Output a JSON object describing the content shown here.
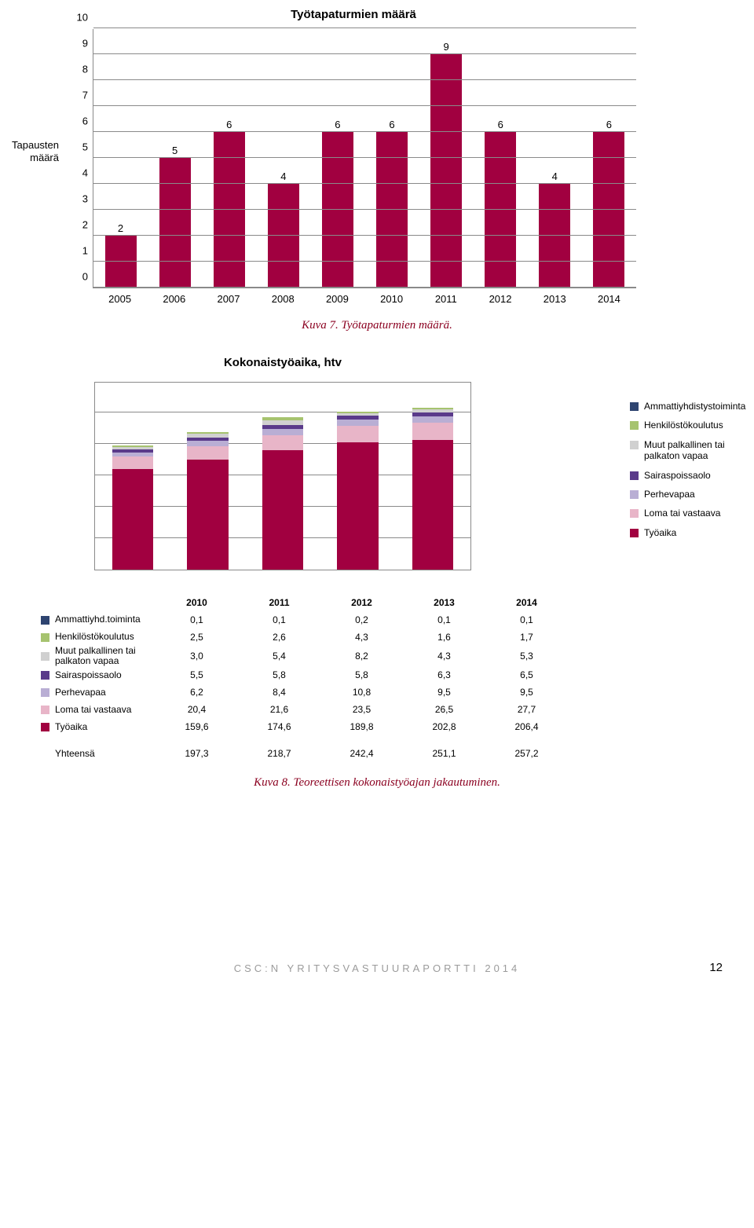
{
  "colors": {
    "bar": "#a10040",
    "grid": "#8a8a8a",
    "caption": "#8b0020",
    "series": {
      "ammattiyhd": "#2e4470",
      "henkilosto": "#a6c36f",
      "muutpalk": "#d0d0d0",
      "sairas": "#5a3a8a",
      "perhe": "#b9aed4",
      "loma": "#e8b5c8",
      "tyoaika": "#a10040"
    }
  },
  "bar_chart": {
    "title": "Työtapaturmien määrä",
    "ylabel": "Tapausten määrä",
    "ymax": 10,
    "yticks": [
      0,
      1,
      2,
      3,
      4,
      5,
      6,
      7,
      8,
      9,
      10
    ],
    "categories": [
      "2005",
      "2006",
      "2007",
      "2008",
      "2009",
      "2010",
      "2011",
      "2012",
      "2013",
      "2014"
    ],
    "values": [
      2,
      5,
      6,
      4,
      6,
      6,
      9,
      6,
      4,
      6
    ]
  },
  "caption1": "Kuva 7. Työtapaturmien määrä.",
  "stacked": {
    "title": "Kokonaistyöaika, htv",
    "ymax": 300,
    "grid_steps": 6,
    "categories": [
      "2010",
      "2011",
      "2012",
      "2013",
      "2014"
    ],
    "series": [
      {
        "key": "tyoaika",
        "name": "Työaika",
        "color": "#a10040",
        "values": [
          159.6,
          174.6,
          189.8,
          202.8,
          206.4
        ]
      },
      {
        "key": "loma",
        "name": "Loma tai vastaava",
        "color": "#e8b5c8",
        "values": [
          20.4,
          21.6,
          23.5,
          26.5,
          27.7
        ]
      },
      {
        "key": "perhe",
        "name": "Perhevapaa",
        "color": "#b9aed4",
        "values": [
          6.2,
          8.4,
          10.8,
          9.5,
          9.5
        ]
      },
      {
        "key": "sairas",
        "name": "Sairaspoissaolo",
        "color": "#5a3a8a",
        "values": [
          5.5,
          5.8,
          5.8,
          6.3,
          6.5
        ]
      },
      {
        "key": "muutpalk",
        "name": "Muut palkallinen tai palkaton vapaa",
        "color": "#d0d0d0",
        "values": [
          3.0,
          5.4,
          8.2,
          4.3,
          5.3
        ]
      },
      {
        "key": "henkilosto",
        "name": "Henkilöstökoulutus",
        "color": "#a6c36f",
        "values": [
          2.5,
          2.6,
          4.3,
          1.6,
          1.7
        ]
      },
      {
        "key": "ammattiyhd",
        "name": "Ammattiyhdistystoiminta",
        "color": "#2e4470",
        "values": [
          0.1,
          0.1,
          0.2,
          0.1,
          0.1
        ]
      }
    ]
  },
  "legend_right_order": [
    "ammattiyhd",
    "henkilosto",
    "muutpalk",
    "sairas",
    "perhe",
    "loma",
    "tyoaika"
  ],
  "table": {
    "header": [
      "2010",
      "2011",
      "2012",
      "2013",
      "2014"
    ],
    "rows": [
      {
        "swatch": "#2e4470",
        "label": "Ammattiyhd.toiminta",
        "values": [
          "0,1",
          "0,1",
          "0,2",
          "0,1",
          "0,1"
        ]
      },
      {
        "swatch": "#a6c36f",
        "label": "Henkilöstökoulutus",
        "values": [
          "2,5",
          "2,6",
          "4,3",
          "1,6",
          "1,7"
        ]
      },
      {
        "swatch": "#d0d0d0",
        "label": "Muut palkallinen tai palkaton vapaa",
        "values": [
          "3,0",
          "5,4",
          "8,2",
          "4,3",
          "5,3"
        ]
      },
      {
        "swatch": "#5a3a8a",
        "label": "Sairaspoissaolo",
        "values": [
          "5,5",
          "5,8",
          "5,8",
          "6,3",
          "6,5"
        ]
      },
      {
        "swatch": "#b9aed4",
        "label": "Perhevapaa",
        "values": [
          "6,2",
          "8,4",
          "10,8",
          "9,5",
          "9,5"
        ]
      },
      {
        "swatch": "#e8b5c8",
        "label": "Loma tai vastaava",
        "values": [
          "20,4",
          "21,6",
          "23,5",
          "26,5",
          "27,7"
        ]
      },
      {
        "swatch": "#a10040",
        "label": "Työaika",
        "values": [
          "159,6",
          "174,6",
          "189,8",
          "202,8",
          "206,4"
        ]
      }
    ],
    "total": {
      "label": "Yhteensä",
      "values": [
        "197,3",
        "218,7",
        "242,4",
        "251,1",
        "257,2"
      ]
    }
  },
  "caption2": "Kuva 8. Teoreettisen kokonaistyöajan jakautuminen.",
  "footer_text": "CSC:N YRITYSVASTUURAPORTTI 2014",
  "page_number": "12"
}
